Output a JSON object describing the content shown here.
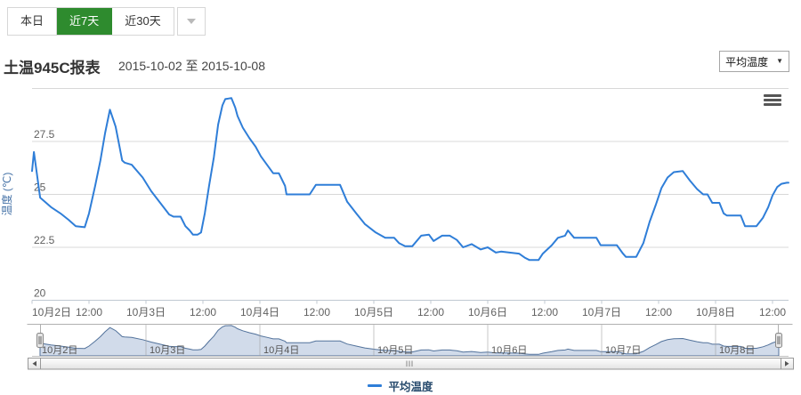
{
  "tabs": {
    "items": [
      {
        "label": "本日",
        "active": false
      },
      {
        "label": "近7天",
        "active": true
      },
      {
        "label": "近30天",
        "active": false
      }
    ]
  },
  "header": {
    "title": "土温945C报表",
    "date_range": "2015-10-02 至 2015-10-08"
  },
  "series_select": {
    "value": "平均温度",
    "caret": "▼"
  },
  "colors": {
    "accent_green": "#2e8b2e",
    "line": "#2f7ed8",
    "grid": "#d8d8d8",
    "axis_line": "#c0c8d2",
    "axis_label": "#606060",
    "y_title": "#4572a7",
    "legend_text": "#274b6d",
    "nav_fill": "#ccd7e8",
    "nav_stroke": "#52729b",
    "nav_grid": "#999999",
    "scrollbar_border": "#999999",
    "grip": "#888888"
  },
  "chart_data": {
    "type": "line",
    "title": "",
    "ylabel": "温度 (℃)",
    "ylim": [
      20,
      30
    ],
    "grid": true,
    "legend_position": "bottom",
    "x_unit": "hours since 2015-10-02 00:00",
    "yticks": [
      {
        "v": 20,
        "label": "20"
      },
      {
        "v": 22.5,
        "label": "22.5"
      },
      {
        "v": 25,
        "label": "25"
      },
      {
        "v": 27.5,
        "label": "27.5"
      },
      {
        "v": 30,
        "label": ""
      }
    ],
    "xticks": [
      {
        "h": 0,
        "label": "10月2日",
        "day": true
      },
      {
        "h": 12,
        "label": "12:00",
        "day": false
      },
      {
        "h": 24,
        "label": "10月3日",
        "day": true
      },
      {
        "h": 36,
        "label": "12:00",
        "day": false
      },
      {
        "h": 48,
        "label": "10月4日",
        "day": true
      },
      {
        "h": 60,
        "label": "12:00",
        "day": false
      },
      {
        "h": 72,
        "label": "10月5日",
        "day": true
      },
      {
        "h": 84,
        "label": "12:00",
        "day": false
      },
      {
        "h": 96,
        "label": "10月6日",
        "day": true
      },
      {
        "h": 108,
        "label": "12:00",
        "day": false
      },
      {
        "h": 120,
        "label": "10月7日",
        "day": true
      },
      {
        "h": 132,
        "label": "12:00",
        "day": false
      },
      {
        "h": 144,
        "label": "10月8日",
        "day": true
      },
      {
        "h": 156,
        "label": "12:00",
        "day": false
      }
    ],
    "series": [
      {
        "name": "平均温度",
        "color": "#2f7ed8",
        "points": [
          [
            0,
            26.1
          ],
          [
            0.4,
            27.0
          ],
          [
            1.7,
            24.85
          ],
          [
            4,
            24.4
          ],
          [
            6,
            24.1
          ],
          [
            7.7,
            23.8
          ],
          [
            9.2,
            23.5
          ],
          [
            11.1,
            23.45
          ],
          [
            12,
            24.1
          ],
          [
            13.3,
            25.4
          ],
          [
            14.4,
            26.6
          ],
          [
            15.4,
            27.9
          ],
          [
            16.4,
            29.0
          ],
          [
            17.6,
            28.2
          ],
          [
            18.4,
            27.3
          ],
          [
            19,
            26.6
          ],
          [
            19.5,
            26.5
          ],
          [
            21,
            26.4
          ],
          [
            23.3,
            25.8
          ],
          [
            25.1,
            25.15
          ],
          [
            27,
            24.6
          ],
          [
            28.9,
            24.05
          ],
          [
            29.8,
            23.95
          ],
          [
            31.3,
            23.95
          ],
          [
            32.3,
            23.5
          ],
          [
            33.2,
            23.3
          ],
          [
            33.9,
            23.1
          ],
          [
            34.9,
            23.1
          ],
          [
            35.6,
            23.2
          ],
          [
            36.4,
            24.1
          ],
          [
            37.3,
            25.4
          ],
          [
            38.3,
            26.75
          ],
          [
            39.2,
            28.3
          ],
          [
            40.1,
            29.2
          ],
          [
            40.7,
            29.5
          ],
          [
            42,
            29.55
          ],
          [
            42.8,
            29.1
          ],
          [
            43.3,
            28.7
          ],
          [
            44.4,
            28.15
          ],
          [
            45.8,
            27.65
          ],
          [
            47.1,
            27.25
          ],
          [
            48.2,
            26.8
          ],
          [
            49.5,
            26.4
          ],
          [
            50.8,
            26.0
          ],
          [
            52,
            26.0
          ],
          [
            53.3,
            25.4
          ],
          [
            53.6,
            25.0
          ],
          [
            58.5,
            25.0
          ],
          [
            59.8,
            25.45
          ],
          [
            64.9,
            25.45
          ],
          [
            66.4,
            24.65
          ],
          [
            68.3,
            24.1
          ],
          [
            70.1,
            23.6
          ],
          [
            72.4,
            23.2
          ],
          [
            74.4,
            22.95
          ],
          [
            76.3,
            22.95
          ],
          [
            77.3,
            22.7
          ],
          [
            78.6,
            22.55
          ],
          [
            80.1,
            22.55
          ],
          [
            82,
            23.05
          ],
          [
            83.6,
            23.1
          ],
          [
            84.6,
            22.8
          ],
          [
            86.4,
            23.05
          ],
          [
            88,
            23.05
          ],
          [
            89.5,
            22.85
          ],
          [
            90.8,
            22.5
          ],
          [
            92.6,
            22.65
          ],
          [
            94.5,
            22.4
          ],
          [
            96,
            22.5
          ],
          [
            97.7,
            22.25
          ],
          [
            98.8,
            22.3
          ],
          [
            102.6,
            22.2
          ],
          [
            103.9,
            22.0
          ],
          [
            104.8,
            21.9
          ],
          [
            106.7,
            21.9
          ],
          [
            107.6,
            22.2
          ],
          [
            109.5,
            22.6
          ],
          [
            110.8,
            22.95
          ],
          [
            112.3,
            23.05
          ],
          [
            112.9,
            23.3
          ],
          [
            114.2,
            22.95
          ],
          [
            118.9,
            22.95
          ],
          [
            119.8,
            22.6
          ],
          [
            123.2,
            22.6
          ],
          [
            124.5,
            22.2
          ],
          [
            125.1,
            22.05
          ],
          [
            127.3,
            22.05
          ],
          [
            128.8,
            22.7
          ],
          [
            130.1,
            23.7
          ],
          [
            131.4,
            24.5
          ],
          [
            132.6,
            25.3
          ],
          [
            133.9,
            25.8
          ],
          [
            135.2,
            26.05
          ],
          [
            137.1,
            26.1
          ],
          [
            138.6,
            25.65
          ],
          [
            140.1,
            25.25
          ],
          [
            141.4,
            25.0
          ],
          [
            142.3,
            25.0
          ],
          [
            143.3,
            24.6
          ],
          [
            144.8,
            24.6
          ],
          [
            145.7,
            24.1
          ],
          [
            146.4,
            24.0
          ],
          [
            149.3,
            24.0
          ],
          [
            150.2,
            23.5
          ],
          [
            152.6,
            23.5
          ],
          [
            154,
            23.9
          ],
          [
            155.1,
            24.4
          ],
          [
            156,
            24.95
          ],
          [
            157,
            25.35
          ],
          [
            157.9,
            25.5
          ],
          [
            159,
            25.55
          ],
          [
            159.4,
            25.55
          ]
        ]
      }
    ],
    "navigator": {
      "shown": true,
      "selection": "full range"
    },
    "scrollbar": {
      "shown": true
    }
  }
}
